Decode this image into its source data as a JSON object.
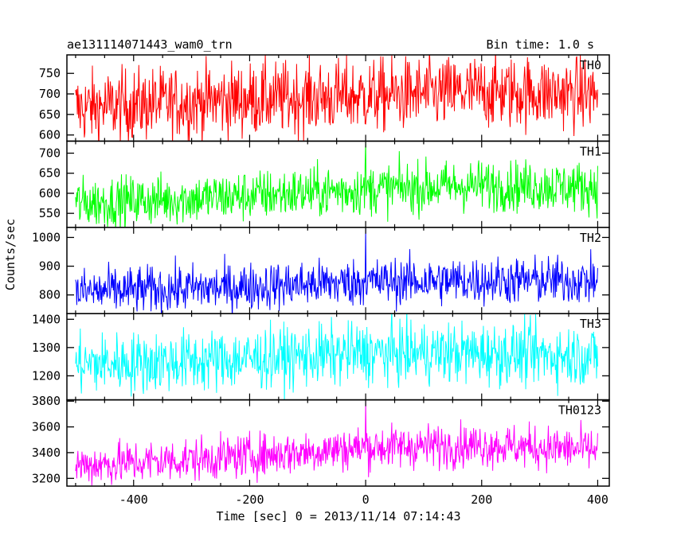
{
  "chart_data": {
    "type": "line",
    "title": "ae131114071443_wam0_trn",
    "bin_time_label": "Bin time: 1.0 s",
    "xlabel": "Time [sec] 0 = 2013/11/14 07:14:43",
    "ylabel": "Counts/sec",
    "xlim": [
      -515,
      420
    ],
    "x_ticks": [
      "-400",
      "-200",
      "0",
      "200",
      "400"
    ],
    "x_range": [
      -500,
      400
    ],
    "bin_time": 1.0,
    "panels": [
      {
        "name": "TH0",
        "color": "#ff0000",
        "ylim": [
          585,
          795
        ],
        "y_ticks": [
          "750",
          "700",
          "650",
          "600"
        ],
        "trend": [
          [
            -500,
            665
          ],
          [
            -250,
            685
          ],
          [
            0,
            695
          ],
          [
            200,
            705
          ],
          [
            400,
            700
          ]
        ],
        "noise": 45,
        "spikes": []
      },
      {
        "name": "TH1",
        "color": "#00ff00",
        "ylim": [
          515,
          730
        ],
        "y_ticks": [
          "700",
          "650",
          "600",
          "550"
        ],
        "trend": [
          [
            -500,
            575
          ],
          [
            -250,
            590
          ],
          [
            0,
            610
          ],
          [
            200,
            620
          ],
          [
            400,
            615
          ]
        ],
        "noise": 32,
        "spikes": [
          [
            0,
            730
          ]
        ]
      },
      {
        "name": "TH2",
        "color": "#0000ff",
        "ylim": [
          735,
          1035
        ],
        "y_ticks": [
          "1000",
          "900",
          "800"
        ],
        "trend": [
          [
            -500,
            810
          ],
          [
            -250,
            825
          ],
          [
            0,
            845
          ],
          [
            200,
            850
          ],
          [
            400,
            850
          ]
        ],
        "noise": 42,
        "spikes": [
          [
            0,
            1035
          ]
        ]
      },
      {
        "name": "TH3",
        "color": "#00ffff",
        "ylim": [
          1115,
          1420
        ],
        "y_ticks": [
          "1400",
          "1300",
          "1200"
        ],
        "trend": [
          [
            -500,
            1240
          ],
          [
            -250,
            1255
          ],
          [
            0,
            1280
          ],
          [
            200,
            1280
          ],
          [
            400,
            1270
          ]
        ],
        "noise": 55,
        "spikes": []
      },
      {
        "name": "TH0123",
        "color": "#ff00ff",
        "ylim": [
          3140,
          3810
        ],
        "y_ticks": [
          "3800",
          "3600",
          "3400",
          "3200"
        ],
        "trend": [
          [
            -500,
            3300
          ],
          [
            -250,
            3360
          ],
          [
            0,
            3440
          ],
          [
            200,
            3460
          ],
          [
            400,
            3420
          ]
        ],
        "noise": 85,
        "spikes": [
          [
            0,
            3800
          ]
        ]
      }
    ]
  }
}
